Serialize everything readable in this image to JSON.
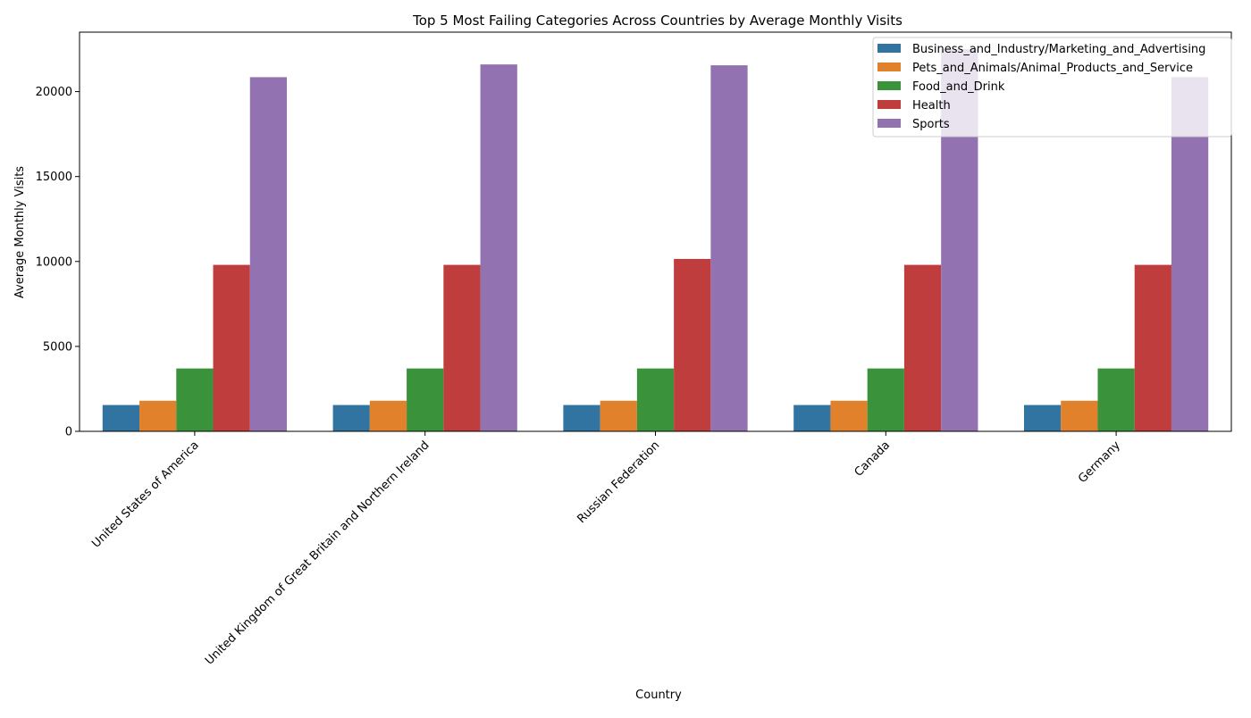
{
  "chart_data": {
    "type": "bar",
    "title": "Top 5 Most Failing Categories Across Countries by Average Monthly Visits",
    "xlabel": "Country",
    "ylabel": "Average Monthly Visits",
    "ylim": [
      0,
      23500
    ],
    "yticks": [
      0,
      5000,
      10000,
      15000,
      20000
    ],
    "ytick_labels": [
      "0",
      "5000",
      "10000",
      "15000",
      "20000"
    ],
    "categories": [
      "United States of America",
      "United Kingdom of Great Britain and Northern Ireland",
      "Russian Federation",
      "Canada",
      "Germany"
    ],
    "series": [
      {
        "name": "Business_and_Industry/Marketing_and_Advertising",
        "color": "#3274a1",
        "values": [
          1550,
          1550,
          1550,
          1550,
          1550
        ]
      },
      {
        "name": "Pets_and_Animals/Animal_Products_and_Service",
        "color": "#e1812c",
        "values": [
          1800,
          1800,
          1800,
          1800,
          1800
        ]
      },
      {
        "name": "Food_and_Drink",
        "color": "#3a923a",
        "values": [
          3700,
          3700,
          3700,
          3700,
          3700
        ]
      },
      {
        "name": "Health",
        "color": "#c03d3e",
        "values": [
          9800,
          9800,
          10150,
          9800,
          9800
        ]
      },
      {
        "name": "Sports",
        "color": "#9372b2",
        "values": [
          20850,
          21600,
          21550,
          22500,
          20850
        ]
      }
    ],
    "legend_position": "top-right",
    "grid": false
  }
}
